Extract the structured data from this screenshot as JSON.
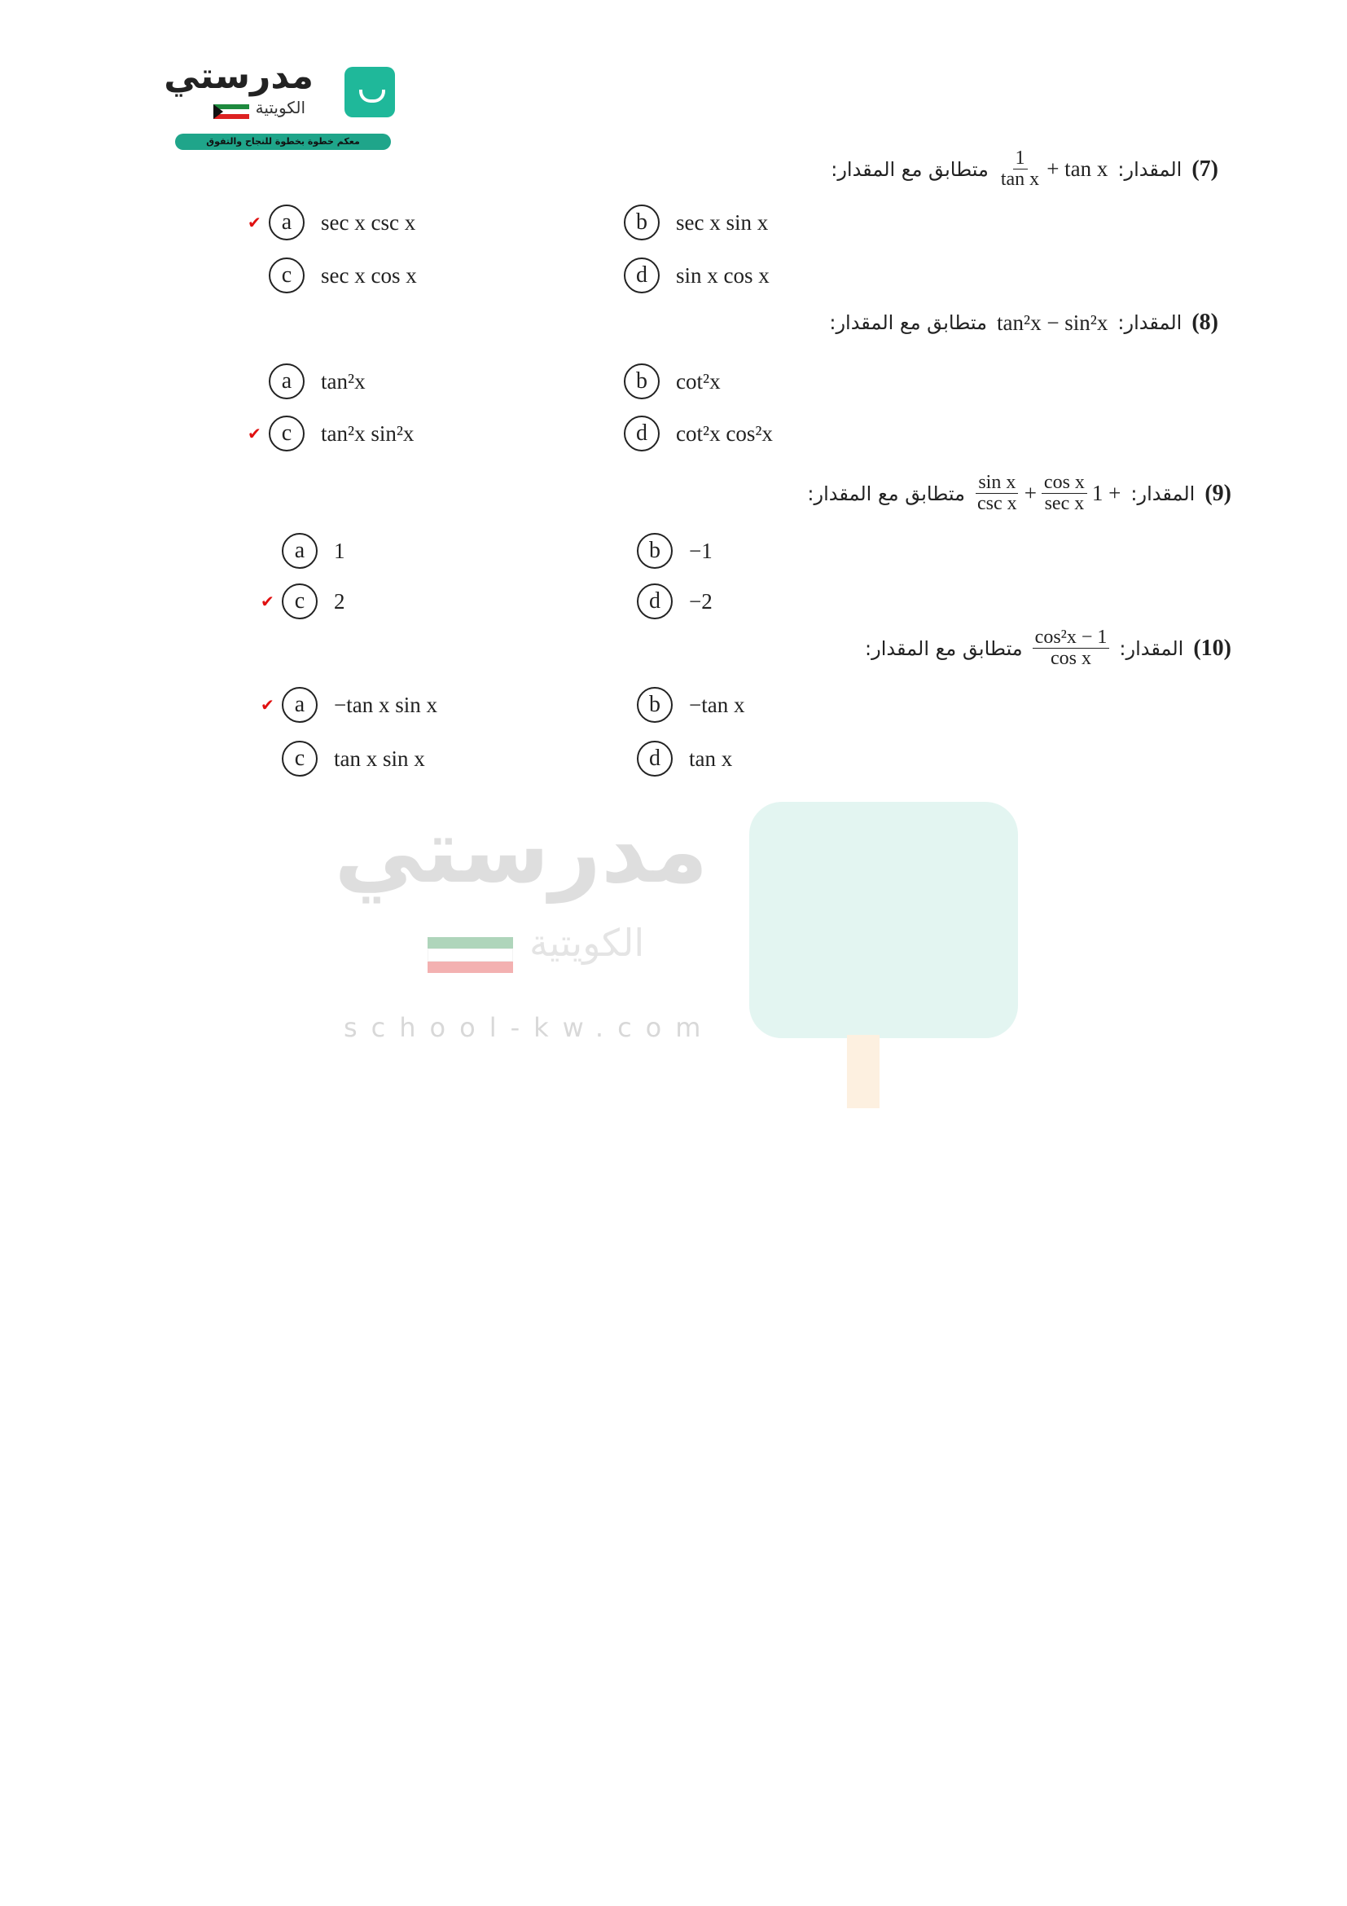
{
  "logo": {
    "name": "مدرستي",
    "subtitle": "الكويتية",
    "tagline": "معكم خطوة بخطوة للنجاح والتفوق",
    "brand_color": "#1fb89a"
  },
  "watermark": {
    "name": "مدرستي",
    "subtitle": "الكويتية",
    "url": "school-kw.com"
  },
  "colors": {
    "check": "#e01010"
  },
  "questions": [
    {
      "number": "(7)",
      "prefix": "المقدار:",
      "expr": {
        "frac_num": "1",
        "frac_den": "tan x",
        "rest": "+ tan x"
      },
      "suffix": "متطابق مع المقدار:",
      "options": [
        {
          "letter": "a",
          "text": "sec x csc x",
          "correct": true
        },
        {
          "letter": "b",
          "text": "sec x sin x",
          "correct": false
        },
        {
          "letter": "c",
          "text": "sec x cos x",
          "correct": false
        },
        {
          "letter": "d",
          "text": "sin x cos x",
          "correct": false
        }
      ]
    },
    {
      "number": "(8)",
      "prefix": "المقدار:",
      "expr": {
        "text": "tan²x − sin²x"
      },
      "suffix": "متطابق مع المقدار:",
      "options": [
        {
          "letter": "a",
          "text": "tan²x",
          "correct": false
        },
        {
          "letter": "b",
          "text": "cot²x",
          "correct": false
        },
        {
          "letter": "c",
          "text": "tan²x sin²x",
          "correct": true
        },
        {
          "letter": "d",
          "text": "cot²x cos²x",
          "correct": false
        }
      ]
    },
    {
      "number": "(9)",
      "prefix": "المقدار:",
      "expr": {
        "lead": "1 +",
        "f1_num": "cos x",
        "f1_den": "sec x",
        "plus": "+",
        "f2_num": "sin x",
        "f2_den": "csc x"
      },
      "suffix": "متطابق مع المقدار:",
      "options": [
        {
          "letter": "a",
          "text": "1",
          "correct": false
        },
        {
          "letter": "b",
          "text": "−1",
          "correct": false
        },
        {
          "letter": "c",
          "text": "2",
          "correct": true
        },
        {
          "letter": "d",
          "text": "−2",
          "correct": false
        }
      ]
    },
    {
      "number": "(10)",
      "prefix": "المقدار:",
      "expr": {
        "frac_num": "cos²x − 1",
        "frac_den": "cos x"
      },
      "suffix": "متطابق مع المقدار:",
      "options": [
        {
          "letter": "a",
          "text": "−tan x sin x",
          "correct": true
        },
        {
          "letter": "b",
          "text": "−tan x",
          "correct": false
        },
        {
          "letter": "c",
          "text": "tan x sin x",
          "correct": false
        },
        {
          "letter": "d",
          "text": "tan x",
          "correct": false
        }
      ]
    }
  ]
}
